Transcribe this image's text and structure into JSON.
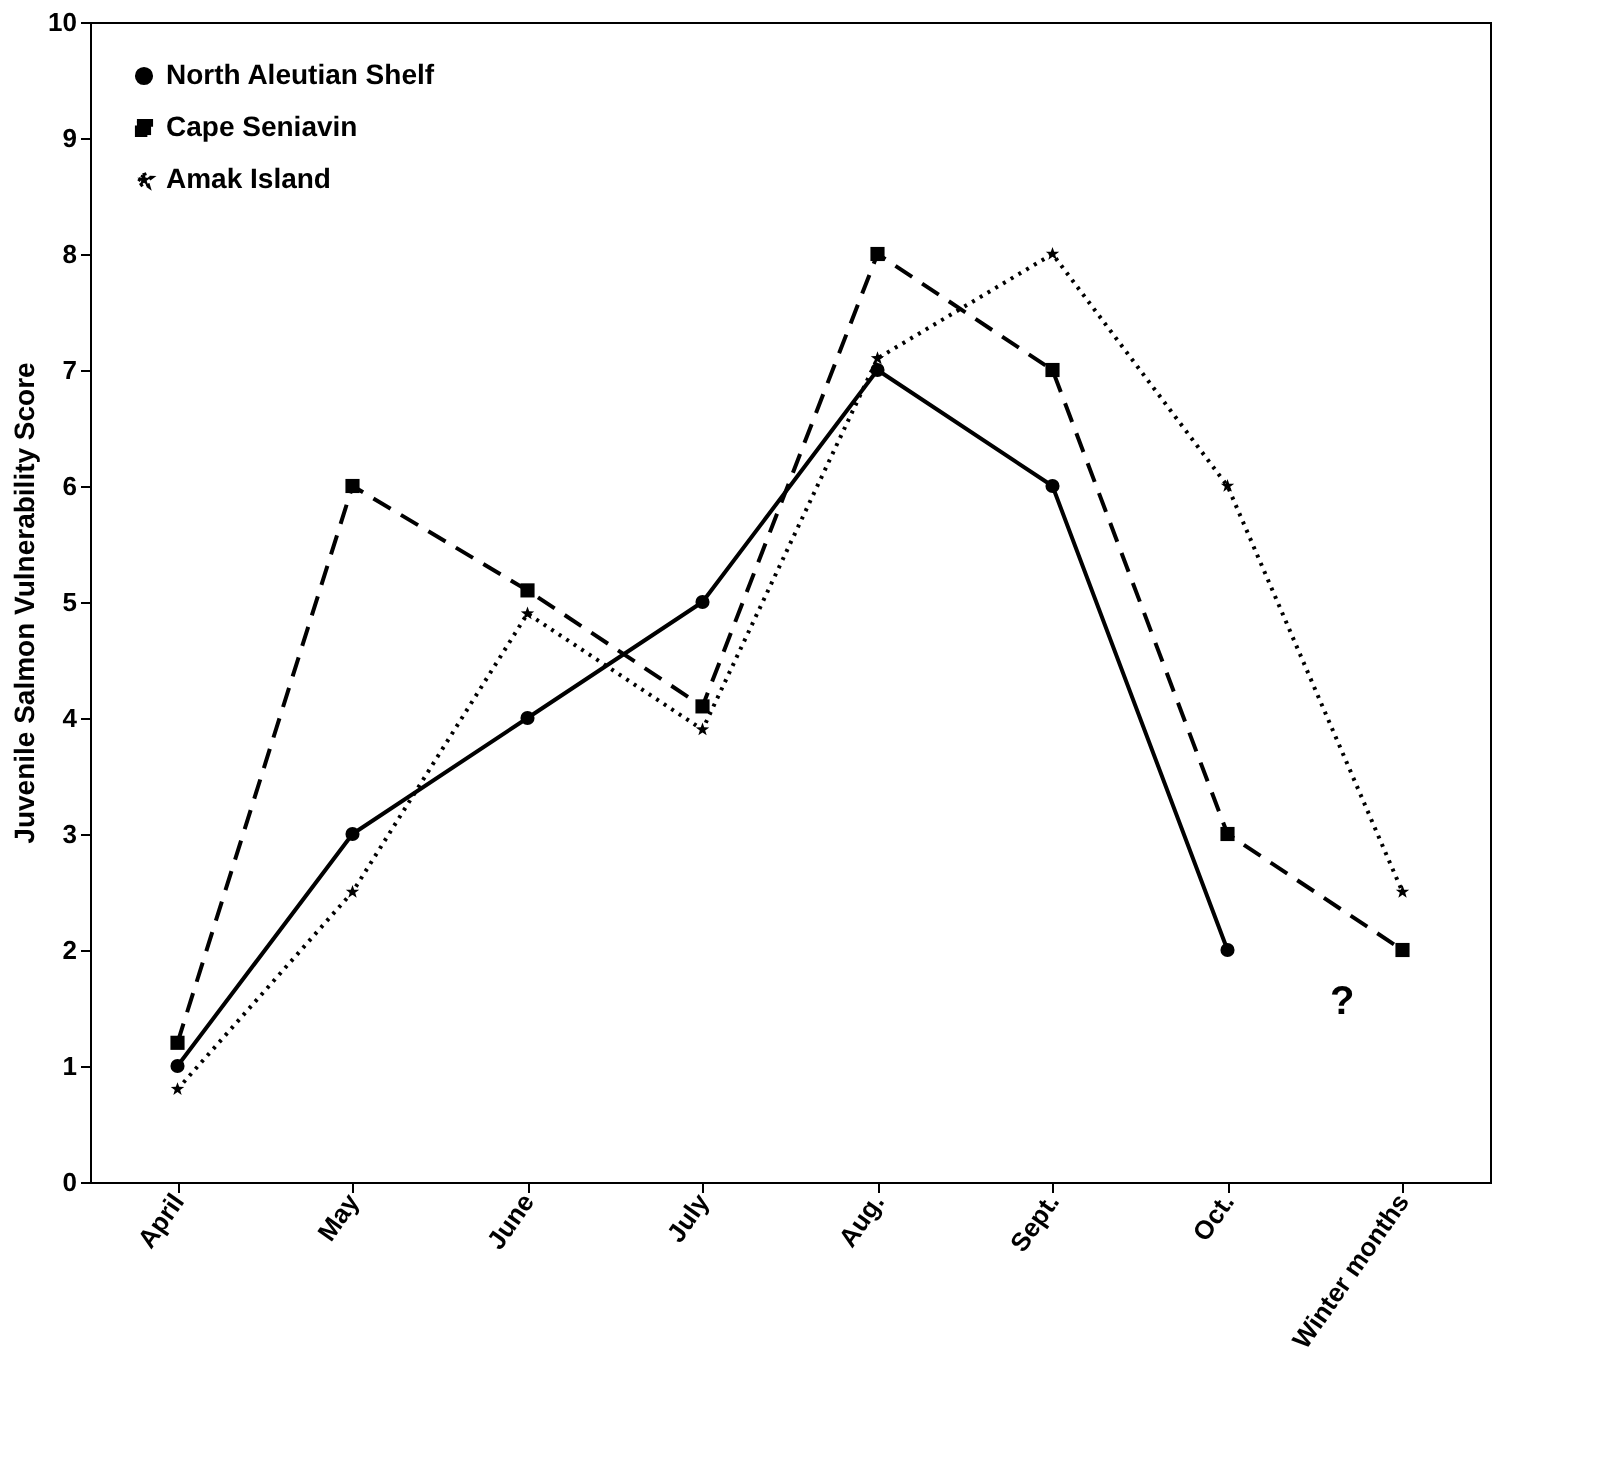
{
  "chart_data": {
    "type": "line",
    "ylabel": "Juvenile Salmon Vulnerability Score",
    "categories": [
      "April",
      "May",
      "June",
      "July",
      "Aug.",
      "Sept.",
      "Oct.",
      "Winter months"
    ],
    "series": [
      {
        "name": "North Aleutian Shelf",
        "color": "#000000",
        "marker": "circle",
        "line_style": "solid",
        "values": [
          1,
          3,
          4,
          5,
          7,
          6,
          2,
          null
        ]
      },
      {
        "name": "Cape Seniavin",
        "color": "#000000",
        "marker": "square",
        "line_style": "dashed",
        "values": [
          1.2,
          6,
          5.1,
          4.1,
          8,
          7,
          3,
          2
        ]
      },
      {
        "name": "Amak Island",
        "color": "#000000",
        "marker": "star",
        "line_style": "dotted",
        "values": [
          0.8,
          2.5,
          4.9,
          3.9,
          7.1,
          8,
          6,
          2.5
        ]
      }
    ],
    "ylim": [
      0,
      10
    ],
    "yticks": [
      0,
      1,
      2,
      3,
      4,
      5,
      6,
      7,
      8,
      9,
      10
    ],
    "grid": false,
    "legend": "top left",
    "annotations": [
      "?"
    ]
  }
}
